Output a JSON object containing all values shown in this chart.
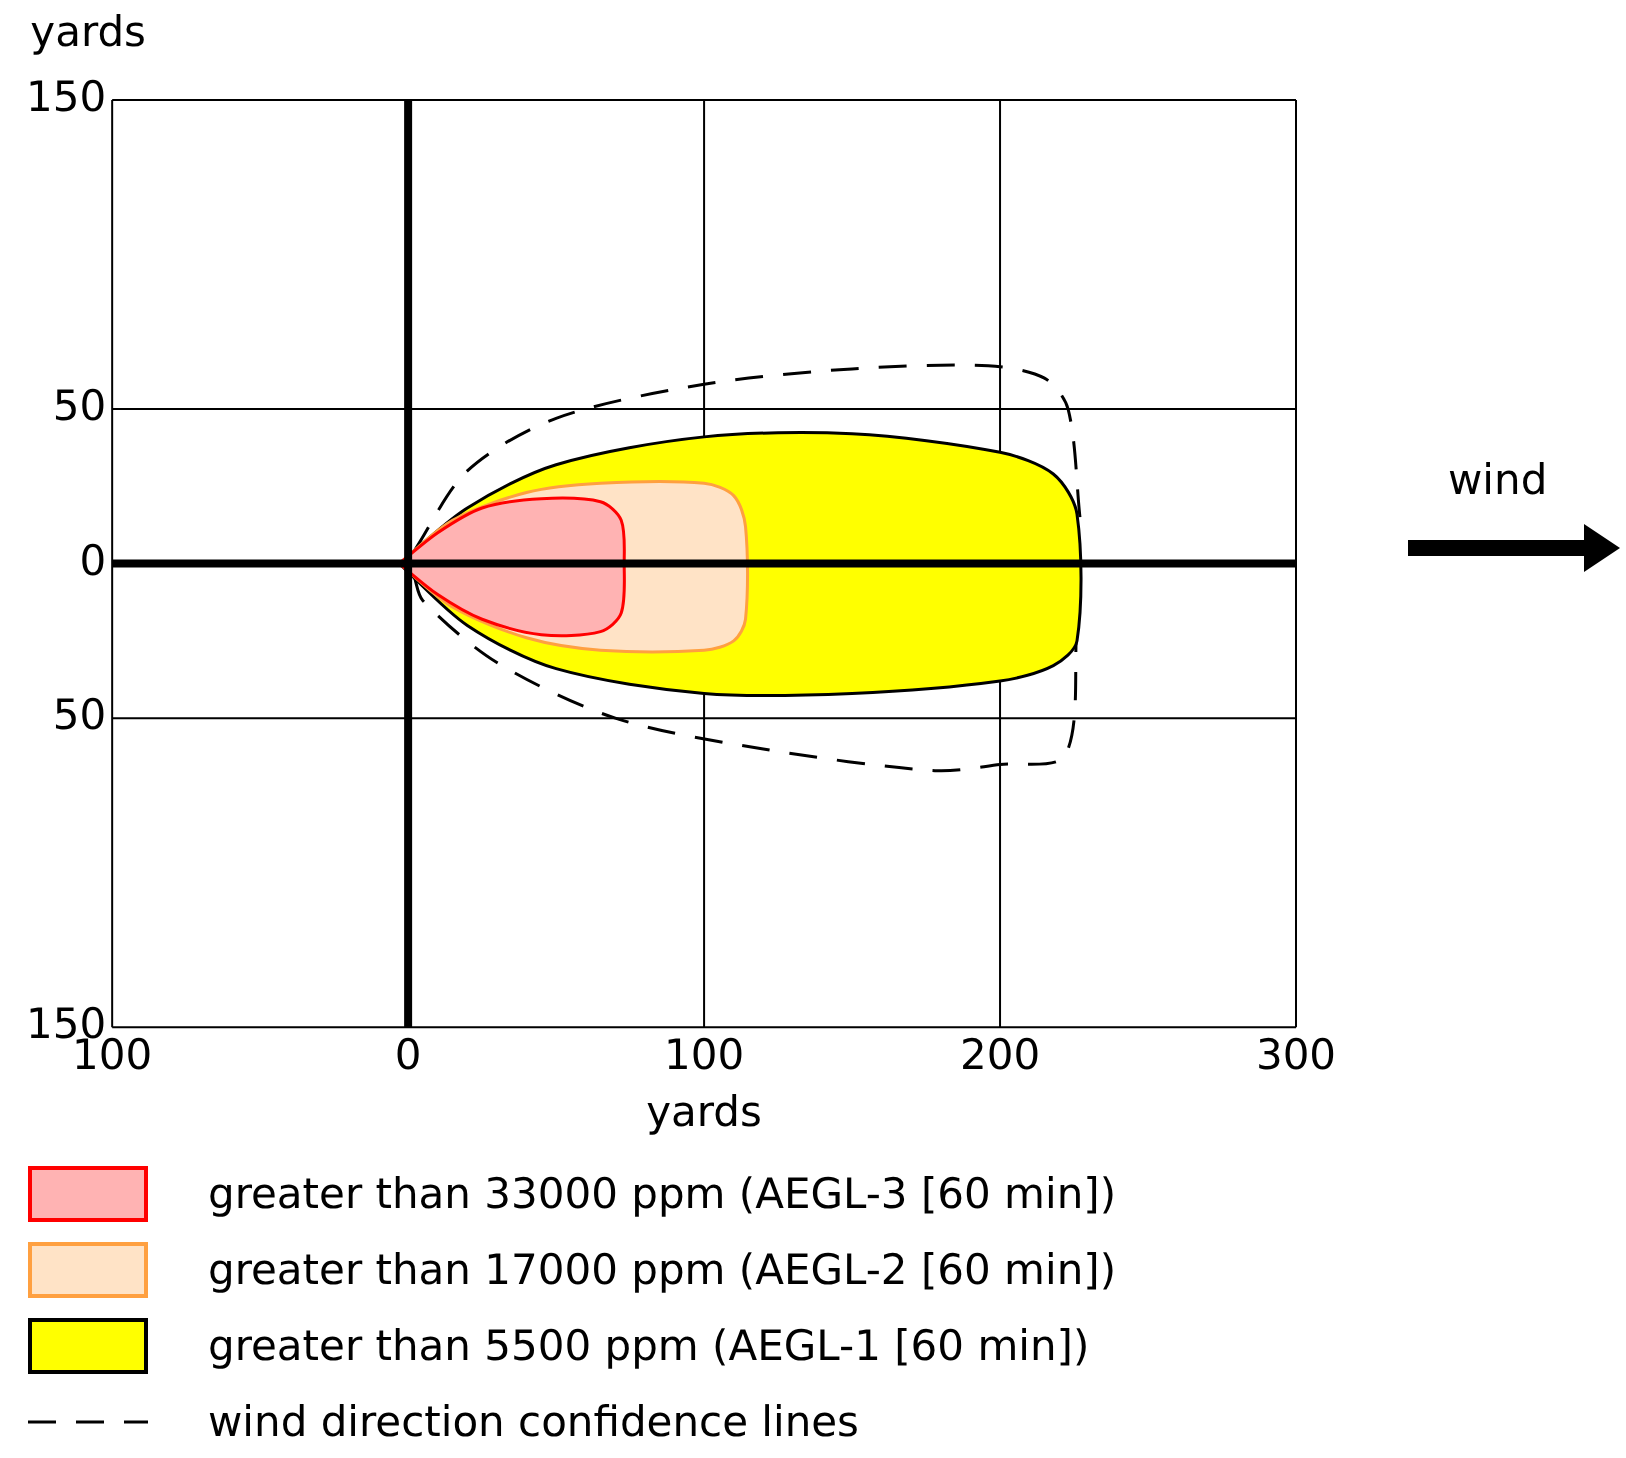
{
  "chart_data": {
    "type": "area",
    "xlabel": "yards",
    "ylabel": "yards",
    "xlim": [
      -100,
      300
    ],
    "ylim": [
      -150,
      150
    ],
    "xticks": [
      {
        "value": -100,
        "label": "100"
      },
      0,
      100,
      200,
      300
    ],
    "yticks": [
      {
        "value": -150,
        "label": "150"
      },
      {
        "value": -50,
        "label": "50"
      },
      0,
      50,
      150
    ],
    "grid": true,
    "legend": "bottom",
    "annotations": [
      "wind"
    ],
    "series": [
      {
        "name": "greater than 33000 ppm (AEGL-3 [60 min])",
        "type": "area",
        "color": "#ff0000",
        "x": [
          -3,
          10,
          25,
          45,
          65,
          72,
          73,
          72,
          65,
          45,
          25,
          10,
          -3
        ],
        "values": [
          0,
          10,
          18,
          21,
          20,
          14,
          0,
          -16,
          -22,
          -23,
          -18,
          -10,
          0
        ]
      },
      {
        "name": "greater than 17000 ppm (AEGL-2 [60 min])",
        "type": "area",
        "color": "#ffa040",
        "x": [
          -3,
          15,
          40,
          65,
          100,
          110,
          114,
          114,
          110,
          100,
          65,
          40,
          15,
          -3
        ],
        "values": [
          0,
          14,
          23,
          26,
          26,
          22,
          12,
          -18,
          -25,
          -28,
          -28,
          -24,
          -14,
          0
        ]
      },
      {
        "name": "greater than 5500 ppm (AEGL-1 [60 min])",
        "type": "area",
        "color": "#ffff00",
        "x": [
          -3,
          20,
          50,
          100,
          150,
          200,
          218,
          226,
          226,
          218,
          200,
          150,
          100,
          50,
          20,
          -3
        ],
        "values": [
          0,
          18,
          32,
          41,
          42,
          36,
          29,
          16,
          -25,
          -33,
          -38,
          -42,
          -42,
          -34,
          -20,
          0
        ]
      },
      {
        "name": "wind direction confidence lines",
        "type": "line",
        "line_style": "dashed",
        "color": "#000000",
        "x": [
          2,
          20,
          50,
          100,
          150,
          196,
          215,
          223,
          227
        ],
        "values": [
          4,
          30,
          47,
          58,
          63,
          64,
          60,
          50,
          15
        ]
      },
      {
        "type": "line",
        "line_style": "dashed",
        "color": "#000000",
        "x": [
          2,
          5,
          30,
          70,
          120,
          178,
          200,
          222,
          226
        ],
        "values": [
          -4,
          -12,
          -32,
          -50,
          -60,
          -67,
          -65,
          -62,
          -20
        ]
      }
    ]
  }
}
